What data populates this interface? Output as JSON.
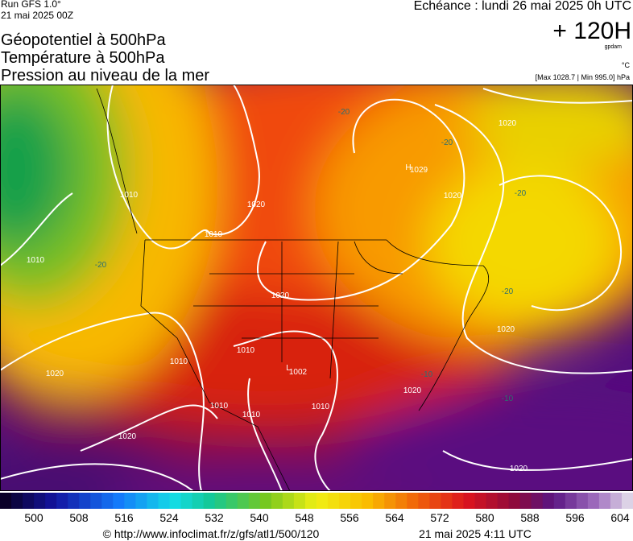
{
  "header": {
    "run": "Run GFS 1.0°",
    "date": "21 mai 2025 00Z",
    "titles": [
      "Géopotentiel à 500hPa",
      "Température à 500hPa",
      "Pression au niveau de la mer"
    ],
    "echeance": "Echéance : lundi 26 mai 2025 0h UTC",
    "lead": "+ 120H",
    "units_geo": "gpdam",
    "units_temp": "°C",
    "pressure_range": "[Max 1028.7 | Min 995.0] hPa"
  },
  "map": {
    "pressure_labels": [
      "H",
      "1029",
      "L",
      "1002",
      "1010",
      "1010",
      "1010",
      "1010",
      "1010",
      "1010",
      "1010",
      "1010",
      "1020",
      "1020",
      "1020",
      "1020",
      "1020",
      "1020",
      "1020",
      "1020",
      "1020"
    ],
    "temperature_labels": [
      "-20",
      "-20",
      "-20",
      "-20",
      "-20",
      "-10",
      "-10"
    ]
  },
  "colorbar": {
    "labels": [
      "500",
      "508",
      "516",
      "524",
      "532",
      "540",
      "548",
      "556",
      "564",
      "572",
      "580",
      "588",
      "596",
      "604"
    ]
  },
  "footer": {
    "url": "© http://www.infoclimat.fr/z/gfs/atl1/500/120",
    "timestamp": "21 mai 2025  4:11 UTC"
  }
}
